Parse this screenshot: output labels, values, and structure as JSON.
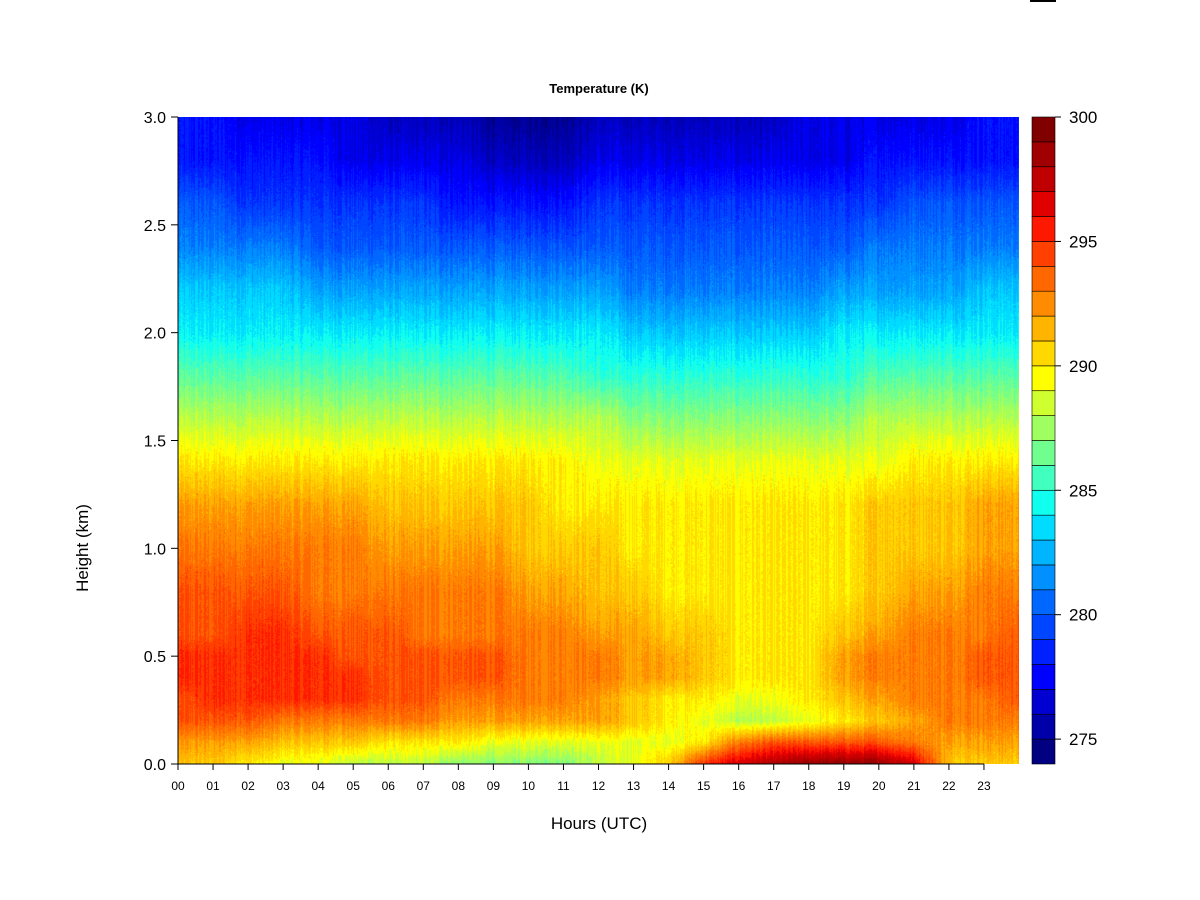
{
  "chart_data": {
    "type": "heatmap",
    "title": "Temperature (K)",
    "xlabel": "Hours (UTC)",
    "ylabel": "Height (km)",
    "x_tick_labels": [
      "00",
      "01",
      "02",
      "03",
      "04",
      "05",
      "06",
      "07",
      "08",
      "09",
      "10",
      "11",
      "12",
      "13",
      "14",
      "15",
      "16",
      "17",
      "18",
      "19",
      "20",
      "21",
      "22",
      "23"
    ],
    "x_ticks": [
      0,
      1,
      2,
      3,
      4,
      5,
      6,
      7,
      8,
      9,
      10,
      11,
      12,
      13,
      14,
      15,
      16,
      17,
      18,
      19,
      20,
      21,
      22,
      23
    ],
    "xlim": [
      0,
      24
    ],
    "y_tick_labels": [
      "0.0",
      "0.5",
      "1.0",
      "1.5",
      "2.0",
      "2.5",
      "3.0"
    ],
    "y_ticks": [
      0.0,
      0.5,
      1.0,
      1.5,
      2.0,
      2.5,
      3.0
    ],
    "ylim": [
      0,
      3.0
    ],
    "colorbar": {
      "min": 274,
      "max": 300,
      "step": 1,
      "tick_labels": [
        "275",
        "280",
        "285",
        "290",
        "295",
        "300"
      ],
      "tick_values": [
        275,
        280,
        285,
        290,
        295,
        300
      ],
      "colors": [
        "#000080",
        "#0000A8",
        "#0000D0",
        "#0000FF",
        "#0020FF",
        "#0045FF",
        "#0068FF",
        "#0090FF",
        "#00B4FF",
        "#00DCFF",
        "#10FFEF",
        "#40FFBF",
        "#70FF8F",
        "#A0FF60",
        "#D0FF2F",
        "#FFFF00",
        "#FFD800",
        "#FFB400",
        "#FF8C00",
        "#FF6800",
        "#FF4000",
        "#FF1800",
        "#E00000",
        "#C00000",
        "#A00000",
        "#800000"
      ]
    },
    "data": {
      "hours": [
        0,
        1,
        2,
        3,
        4,
        5,
        6,
        7,
        8,
        9,
        10,
        11,
        12,
        13,
        14,
        15,
        16,
        17,
        18,
        19,
        20,
        21,
        22,
        23,
        24
      ],
      "heights_km": [
        0.0,
        0.1,
        0.2,
        0.3,
        0.4,
        0.5,
        0.6,
        0.8,
        1.0,
        1.2,
        1.4,
        1.6,
        1.8,
        2.0,
        2.2,
        2.4,
        2.6,
        2.8,
        3.0
      ],
      "temperature_k": [
        [
          291,
          291,
          290,
          289,
          289,
          288,
          288,
          288,
          287,
          287,
          287,
          287,
          288,
          289,
          291,
          295,
          297,
          298,
          299,
          299,
          299,
          297,
          291,
          291,
          291
        ],
        [
          292,
          292,
          292,
          291,
          291,
          291,
          290,
          290,
          290,
          289,
          289,
          289,
          289,
          289,
          289,
          290,
          293,
          294,
          294,
          294,
          294,
          293,
          292,
          292,
          292
        ],
        [
          294,
          294,
          294,
          293,
          293,
          293,
          293,
          293,
          292,
          292,
          292,
          292,
          292,
          291,
          290,
          289,
          288,
          288,
          289,
          290,
          291,
          292,
          293,
          293,
          293
        ],
        [
          294,
          295,
          295,
          295,
          295,
          295,
          294,
          294,
          293,
          293,
          293,
          293,
          292,
          291,
          290,
          290,
          289,
          289,
          290,
          291,
          292,
          293,
          293,
          293,
          294
        ],
        [
          295,
          295,
          295,
          295,
          295,
          295,
          294,
          294,
          294,
          294,
          293,
          293,
          293,
          292,
          292,
          291,
          290,
          290,
          290,
          292,
          293,
          293,
          293,
          294,
          294
        ],
        [
          295,
          295,
          295,
          295,
          295,
          294,
          294,
          294,
          294,
          294,
          293,
          293,
          293,
          292,
          292,
          291,
          290,
          290,
          290,
          292,
          293,
          293,
          293,
          294,
          294
        ],
        [
          294,
          294,
          295,
          295,
          294,
          294,
          294,
          293,
          293,
          293,
          293,
          293,
          292,
          292,
          291,
          291,
          290,
          290,
          290,
          291,
          292,
          293,
          293,
          293,
          294
        ],
        [
          294,
          294,
          294,
          294,
          293,
          293,
          293,
          293,
          293,
          293,
          292,
          292,
          291,
          291,
          290,
          290,
          290,
          290,
          290,
          290,
          291,
          292,
          292,
          293,
          293
        ],
        [
          293,
          293,
          293,
          293,
          293,
          293,
          292,
          292,
          292,
          292,
          291,
          291,
          291,
          290,
          290,
          290,
          290,
          290,
          290,
          290,
          291,
          291,
          291,
          292,
          292
        ],
        [
          292,
          292,
          292,
          292,
          292,
          292,
          291,
          291,
          291,
          291,
          291,
          290,
          290,
          290,
          290,
          290,
          290,
          290,
          290,
          290,
          291,
          291,
          291,
          292,
          292
        ],
        [
          290,
          290,
          290,
          290,
          290,
          290,
          290,
          290,
          290,
          290,
          290,
          290,
          289,
          289,
          289,
          289,
          289,
          289,
          289,
          289,
          289,
          290,
          290,
          290,
          290
        ],
        [
          288,
          288,
          288,
          288,
          288,
          288,
          288,
          288,
          288,
          288,
          288,
          288,
          288,
          287,
          287,
          287,
          287,
          287,
          287,
          287,
          288,
          288,
          288,
          288,
          288
        ],
        [
          286,
          286,
          286,
          286,
          286,
          286,
          286,
          286,
          286,
          286,
          286,
          286,
          285,
          285,
          285,
          285,
          285,
          285,
          285,
          285,
          286,
          286,
          286,
          286,
          286
        ],
        [
          284,
          284,
          284,
          284,
          284,
          284,
          284,
          284,
          284,
          284,
          284,
          284,
          284,
          283,
          283,
          283,
          283,
          283,
          283,
          284,
          284,
          284,
          284,
          284,
          284
        ],
        [
          283,
          283,
          283,
          283,
          282,
          282,
          282,
          282,
          282,
          282,
          282,
          282,
          282,
          281,
          281,
          281,
          281,
          281,
          281,
          282,
          282,
          282,
          282,
          283,
          283
        ],
        [
          281,
          281,
          281,
          281,
          280,
          280,
          280,
          280,
          280,
          280,
          280,
          280,
          280,
          280,
          280,
          280,
          280,
          280,
          280,
          280,
          281,
          281,
          281,
          281,
          281
        ],
        [
          280,
          280,
          279,
          279,
          279,
          279,
          279,
          279,
          278,
          278,
          278,
          278,
          279,
          279,
          279,
          279,
          279,
          279,
          279,
          279,
          279,
          280,
          280,
          280,
          280
        ],
        [
          278,
          278,
          278,
          278,
          278,
          277,
          277,
          277,
          277,
          276,
          276,
          276,
          277,
          277,
          277,
          277,
          277,
          277,
          277,
          277,
          278,
          278,
          278,
          278,
          278
        ],
        [
          278,
          278,
          277,
          277,
          277,
          277,
          276,
          276,
          276,
          275,
          275,
          275,
          276,
          276,
          276,
          276,
          276,
          276,
          277,
          277,
          277,
          277,
          277,
          278,
          278
        ]
      ]
    }
  }
}
